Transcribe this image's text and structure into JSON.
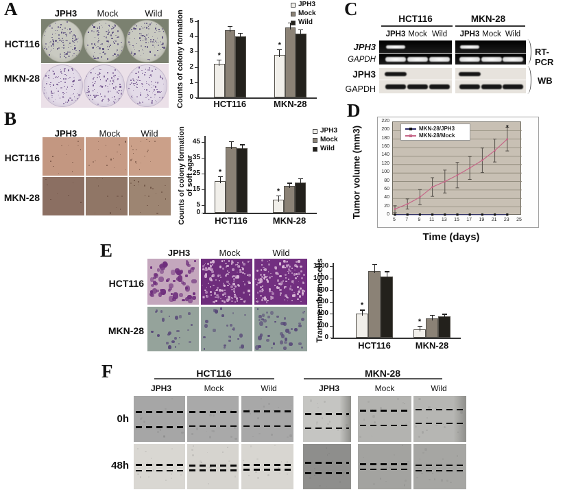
{
  "panels": {
    "A": {
      "label": "A",
      "col_headers": [
        "JPH3",
        "Mock",
        "Wild"
      ],
      "row_labels": [
        "HCT116",
        "MKN-28"
      ],
      "image_rows": [
        {
          "name": "HCT116",
          "bg": "#7b8170",
          "dish_fill": "#c9cac1",
          "dish_edge": "#a5a69a",
          "speck_color": "#4f4276"
        },
        {
          "name": "MKN-28",
          "bg": "#ebe0e8",
          "dish_fill": "#e3dbe8",
          "dish_edge": "#c4b8cc",
          "speck_color": "#6d4f8a"
        }
      ]
    },
    "B": {
      "label": "B",
      "col_headers": [
        "JPH3",
        "Mock",
        "Wild"
      ],
      "row_labels": [
        "HCT116",
        "MKN-28"
      ],
      "tiles": [
        {
          "row": "HCT116",
          "col": "JPH3",
          "bg": "#c39781",
          "dots": 12
        },
        {
          "row": "HCT116",
          "col": "Mock",
          "bg": "#c79b85",
          "dots": 16
        },
        {
          "row": "HCT116",
          "col": "Wild",
          "bg": "#cba089",
          "dots": 18
        },
        {
          "row": "MKN-28",
          "col": "JPH3",
          "bg": "#8b6f62",
          "dots": 7
        },
        {
          "row": "MKN-28",
          "col": "Mock",
          "bg": "#907666",
          "dots": 10
        },
        {
          "row": "MKN-28",
          "col": "Wild",
          "bg": "#9d8572",
          "dots": 18
        }
      ]
    },
    "C": {
      "label": "C",
      "group_headers": [
        "HCT116",
        "MKN-28"
      ],
      "lane_labels": [
        "JPH3",
        "Mock",
        "Wild"
      ],
      "row_labels": [
        "JPH3",
        "GAPDH",
        "JPH3",
        "GAPDH"
      ],
      "assay_labels": [
        "RT-PCR",
        "WB"
      ],
      "bands": {
        "rtpcr_jph3": [
          [
            1,
            0,
            0
          ],
          [
            1,
            0,
            0
          ]
        ],
        "rtpcr_gapdh": [
          [
            1,
            1,
            1
          ],
          [
            1,
            1,
            1
          ]
        ],
        "wb_jph3": [
          [
            1,
            0,
            0
          ],
          [
            1,
            0,
            0
          ]
        ],
        "wb_gapdh": [
          [
            1,
            1,
            1
          ],
          [
            1,
            1,
            1
          ]
        ]
      }
    },
    "D": {
      "label": "D"
    },
    "E": {
      "label": "E",
      "col_headers": [
        "JPH3",
        "Mock",
        "Wild"
      ],
      "row_labels": [
        "HCT116",
        "MKN-28"
      ],
      "tiles": [
        {
          "row": "HCT116",
          "col": "JPH3",
          "bg": "#c4a7bd",
          "speck": "#6e2e7c",
          "style": "sparse-dark"
        },
        {
          "row": "HCT116",
          "col": "Mock",
          "bg": "#6e2d7c",
          "speck": "#d9b9d6",
          "style": "dense-light"
        },
        {
          "row": "HCT116",
          "col": "Wild",
          "bg": "#722f80",
          "speck": "#d9b9d6",
          "style": "dense-light"
        },
        {
          "row": "MKN-28",
          "col": "JPH3",
          "bg": "#95a39b",
          "speck": "#574878",
          "style": "few-dark"
        },
        {
          "row": "MKN-28",
          "col": "Mock",
          "bg": "#93a19c",
          "speck": "#574878",
          "style": "few-dark"
        },
        {
          "row": "MKN-28",
          "col": "Wild",
          "bg": "#91a09a",
          "speck": "#574878",
          "style": "more-dark"
        }
      ]
    },
    "F": {
      "label": "F",
      "group_headers": [
        "HCT116",
        "MKN-28"
      ],
      "col_labels": [
        "JPH3",
        "Mock",
        "Wild"
      ],
      "row_labels": [
        "0h",
        "48h"
      ],
      "tiles": [
        {
          "row": "0h",
          "group": "HCT116",
          "col": "JPH3",
          "bg": "#a6a6a6",
          "dashes": [
            33,
            66
          ]
        },
        {
          "row": "0h",
          "group": "HCT116",
          "col": "Mock",
          "bg": "#a9a9a9",
          "dashes": [
            33,
            64
          ]
        },
        {
          "row": "0h",
          "group": "HCT116",
          "col": "Wild",
          "bg": "#a8a8a8",
          "dashes": [
            32,
            64
          ]
        },
        {
          "row": "0h",
          "group": "MKN-28",
          "col": "JPH3",
          "bg": "#c5c5c2",
          "dashes": [
            38,
            68
          ],
          "edge": "right"
        },
        {
          "row": "0h",
          "group": "MKN-28",
          "col": "Mock",
          "bg": "#b3b3b0",
          "dashes": [
            30,
            62
          ]
        },
        {
          "row": "0h",
          "group": "MKN-28",
          "col": "Wild",
          "bg": "#b6b6b3",
          "dashes": [
            28,
            58
          ],
          "edge": "right"
        },
        {
          "row": "48h",
          "group": "HCT116",
          "col": "JPH3",
          "bg": "#d9d7d2",
          "dashes": [
            44,
            57
          ]
        },
        {
          "row": "48h",
          "group": "HCT116",
          "col": "Mock",
          "bg": "#d6d4cf",
          "dashes": [
            46,
            56
          ]
        },
        {
          "row": "48h",
          "group": "HCT116",
          "col": "Wild",
          "bg": "#d8d6d1",
          "dashes": [
            44,
            55
          ]
        },
        {
          "row": "48h",
          "group": "MKN-28",
          "col": "JPH3",
          "bg": "#8e8e8c",
          "dashes": [
            40,
            62
          ]
        },
        {
          "row": "48h",
          "group": "MKN-28",
          "col": "Mock",
          "bg": "#a3a3a0",
          "dashes": [
            43,
            54
          ]
        },
        {
          "row": "48h",
          "group": "MKN-28",
          "col": "Wild",
          "bg": "#a6a6a3",
          "dashes": [
            45,
            57
          ]
        }
      ]
    }
  },
  "chart_data": [
    {
      "id": "A",
      "type": "bar",
      "ylabel": "Counts of colony formation",
      "categories": [
        "HCT116",
        "MKN-28"
      ],
      "series": [
        {
          "name": "JPH3",
          "values": [
            2.2,
            2.8
          ],
          "errors": [
            0.3,
            0.35
          ],
          "sig": [
            "*",
            "*"
          ]
        },
        {
          "name": "Mock",
          "values": [
            4.4,
            4.6
          ],
          "errors": [
            0.3,
            0.3
          ]
        },
        {
          "name": "Wild",
          "values": [
            4.0,
            4.2
          ],
          "errors": [
            0.25,
            0.25
          ]
        }
      ],
      "ylim": [
        0,
        5
      ],
      "yticks": [
        0,
        1,
        2,
        3,
        4,
        5
      ],
      "legend_position": "top-right",
      "grid": false
    },
    {
      "id": "B",
      "type": "bar",
      "ylabel": "Counts of colony formation of soft agar",
      "ylabel_lines": [
        "Counts of colony formation",
        "of soft agar"
      ],
      "categories": [
        "HCT116",
        "MKN-28"
      ],
      "series": [
        {
          "name": "JPH3",
          "values": [
            20,
            8.5
          ],
          "errors": [
            3,
            2.5
          ],
          "sig": [
            "*",
            "*"
          ]
        },
        {
          "name": "Mock",
          "values": [
            42,
            17
          ],
          "errors": [
            3.5,
            2
          ]
        },
        {
          "name": "Wild",
          "values": [
            41,
            19
          ],
          "errors": [
            2.5,
            3
          ]
        }
      ],
      "ylim": [
        0,
        48
      ],
      "yticks": [
        0,
        5,
        15,
        25,
        35,
        45
      ],
      "legend_position": "top-right",
      "grid": false
    },
    {
      "id": "E",
      "type": "bar",
      "ylabel": "Transmembrane cells",
      "categories": [
        "HCT116",
        "MKN-28"
      ],
      "series": [
        {
          "name": "JPH3",
          "values": [
            400,
            140
          ],
          "errors": [
            70,
            60
          ],
          "sig": [
            "*",
            "*"
          ]
        },
        {
          "name": "Mock",
          "values": [
            1120,
            330
          ],
          "errors": [
            120,
            50
          ]
        },
        {
          "name": "Wild",
          "values": [
            1030,
            355
          ],
          "errors": [
            90,
            45
          ]
        }
      ],
      "ylim": [
        0,
        1240
      ],
      "yticks": [
        0,
        200,
        400,
        600,
        800,
        1000,
        1200
      ],
      "legend_position": "none",
      "grid": false
    },
    {
      "id": "D",
      "type": "line",
      "xlabel": "Time (days)",
      "ylabel": "Tumor volume (mm3)",
      "x": [
        5,
        7,
        9,
        11,
        13,
        15,
        17,
        19,
        21,
        23
      ],
      "series": [
        {
          "name": "MKN-28/JPH3",
          "color": "#2a2a66",
          "marker_color": "#111111",
          "values": [
            2,
            2,
            2,
            2,
            2,
            2,
            2,
            2,
            2,
            2
          ]
        },
        {
          "name": "MKN-28/Mock",
          "color": "#c56687",
          "marker_color": "#c56687",
          "values": [
            15,
            27,
            43,
            67,
            80,
            95,
            112,
            130,
            153,
            180
          ],
          "errors": [
            8,
            12,
            18,
            22,
            27,
            30,
            27,
            29,
            27,
            28
          ]
        }
      ],
      "ylim": [
        0,
        220
      ],
      "yticks": [
        0,
        20,
        40,
        60,
        80,
        100,
        120,
        140,
        160,
        180,
        200,
        220
      ],
      "xticks": [
        5,
        7,
        9,
        11,
        13,
        15,
        17,
        19,
        21,
        23,
        25
      ],
      "annotation": {
        "text": "*",
        "x": 23,
        "y": 207
      },
      "legend_position": "top-left",
      "grid": true,
      "plot_bg": "#c8c0b4",
      "grid_color": "#8d8778"
    }
  ],
  "palette": {
    "JPH3": "#f1efea",
    "Mock": "#8b8276",
    "Wild": "#23211c",
    "error": "#222222",
    "axis": "#333333"
  }
}
